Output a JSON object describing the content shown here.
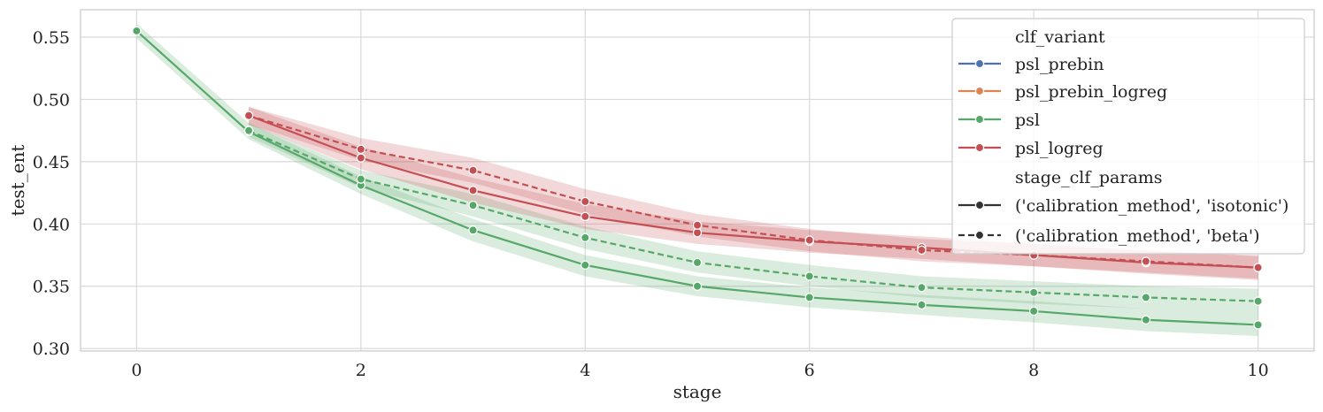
{
  "chart_data": {
    "type": "line",
    "title": "",
    "xlabel": "stage",
    "ylabel": "test_ent",
    "xlim": [
      -0.5,
      10.5
    ],
    "ylim": [
      0.298,
      0.572
    ],
    "xticks": [
      0,
      2,
      4,
      6,
      8,
      10
    ],
    "yticks": [
      0.3,
      0.35,
      0.4,
      0.45,
      0.5,
      0.55
    ],
    "ytick_labels": [
      "0.30",
      "0.35",
      "0.40",
      "0.45",
      "0.50",
      "0.55"
    ],
    "grid": true,
    "legend_placement": "top-right",
    "legend": {
      "hue_title": "clf_variant",
      "hue_entries": [
        {
          "name": "psl_prebin",
          "color": "#4c72b0"
        },
        {
          "name": "psl_prebin_logreg",
          "color": "#dd8452"
        },
        {
          "name": "psl",
          "color": "#55a868"
        },
        {
          "name": "psl_logreg",
          "color": "#c44e52"
        }
      ],
      "style_title": "stage_clf_params",
      "style_entries": [
        {
          "name": "('calibration_method', 'isotonic')",
          "dash": "solid"
        },
        {
          "name": "('calibration_method', 'beta')",
          "dash": "dashed"
        }
      ]
    },
    "series": [
      {
        "clf_variant": "psl",
        "style": "isotonic",
        "color": "#55a868",
        "x": [
          0,
          1,
          2,
          3,
          4,
          5,
          6,
          7,
          8,
          9,
          10
        ],
        "y": [
          0.555,
          0.474,
          0.431,
          0.395,
          0.367,
          0.35,
          0.341,
          0.335,
          0.33,
          0.323,
          0.319
        ],
        "ci_low": [
          0.549,
          0.468,
          0.424,
          0.386,
          0.358,
          0.342,
          0.333,
          0.327,
          0.321,
          0.314,
          0.31
        ],
        "ci_high": [
          0.561,
          0.481,
          0.438,
          0.404,
          0.375,
          0.358,
          0.349,
          0.343,
          0.338,
          0.332,
          0.328
        ]
      },
      {
        "clf_variant": "psl",
        "style": "beta",
        "color": "#55a868",
        "x": [
          1,
          2,
          3,
          4,
          5,
          6,
          7,
          8,
          9,
          10
        ],
        "y": [
          0.475,
          0.436,
          0.415,
          0.389,
          0.369,
          0.358,
          0.349,
          0.345,
          0.341,
          0.338
        ],
        "ci_low": [
          0.47,
          0.429,
          0.406,
          0.38,
          0.361,
          0.35,
          0.341,
          0.336,
          0.332,
          0.328
        ],
        "ci_high": [
          0.481,
          0.443,
          0.424,
          0.398,
          0.378,
          0.367,
          0.358,
          0.354,
          0.35,
          0.348
        ]
      },
      {
        "clf_variant": "psl_logreg",
        "style": "isotonic",
        "color": "#c44e52",
        "x": [
          1,
          2,
          3,
          4,
          5,
          6,
          7,
          8,
          9,
          10
        ],
        "y": [
          0.487,
          0.453,
          0.427,
          0.406,
          0.393,
          0.386,
          0.381,
          0.375,
          0.369,
          0.365
        ],
        "ci_low": [
          0.48,
          0.444,
          0.417,
          0.396,
          0.384,
          0.377,
          0.372,
          0.366,
          0.36,
          0.355
        ],
        "ci_high": [
          0.494,
          0.462,
          0.437,
          0.416,
          0.402,
          0.395,
          0.39,
          0.384,
          0.378,
          0.375
        ]
      },
      {
        "clf_variant": "psl_logreg",
        "style": "beta",
        "color": "#c44e52",
        "x": [
          1,
          2,
          3,
          4,
          5,
          6,
          7,
          8,
          9,
          10
        ],
        "y": [
          0.487,
          0.46,
          0.443,
          0.418,
          0.399,
          0.387,
          0.379,
          0.375,
          0.37,
          0.365
        ],
        "ci_low": [
          0.48,
          0.451,
          0.433,
          0.408,
          0.39,
          0.378,
          0.37,
          0.366,
          0.361,
          0.356
        ],
        "ci_high": [
          0.494,
          0.469,
          0.453,
          0.428,
          0.408,
          0.396,
          0.388,
          0.384,
          0.379,
          0.374
        ]
      }
    ]
  }
}
